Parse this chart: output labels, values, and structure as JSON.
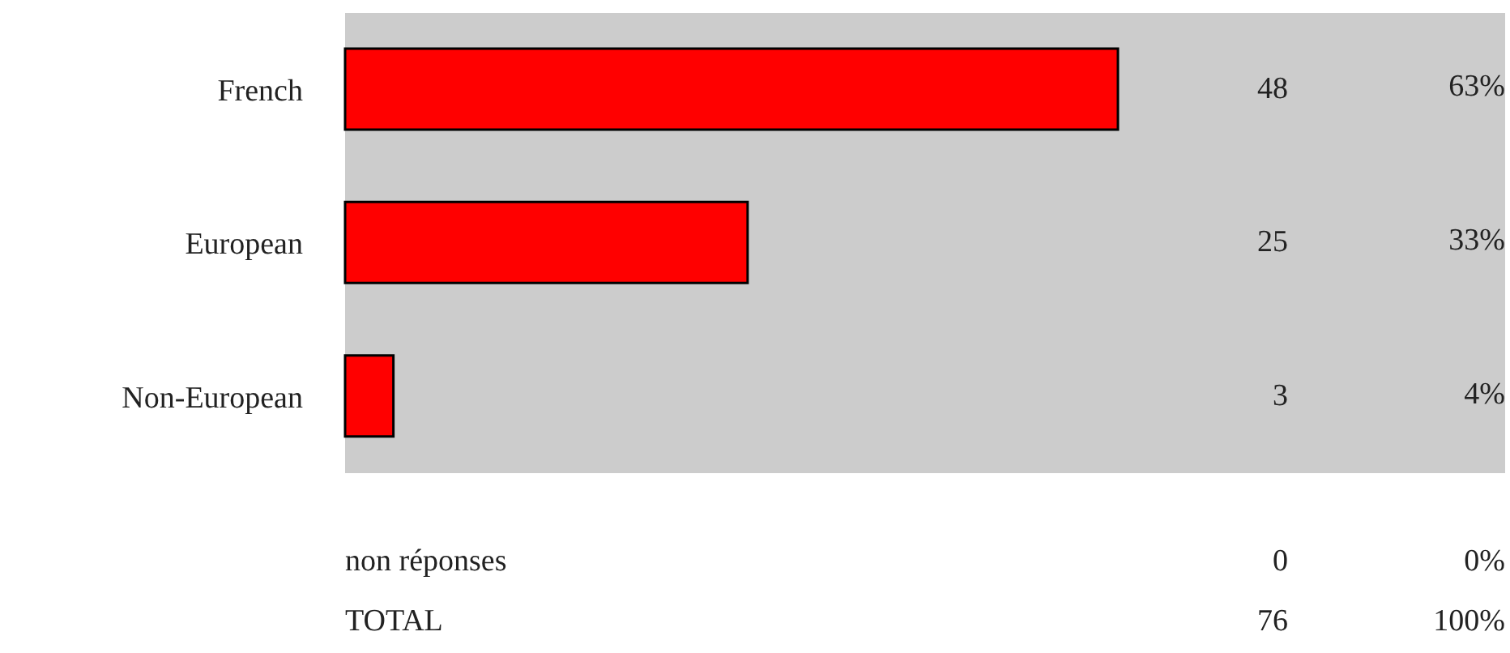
{
  "chart_data": {
    "type": "bar",
    "orientation": "horizontal",
    "categories": [
      "French",
      "European",
      "Non-European"
    ],
    "values": [
      48,
      25,
      3
    ],
    "color": "#ff0000",
    "data_labels": true,
    "annotations": [
      "63%",
      "33%",
      "4%",
      "non réponses",
      "0",
      "0%",
      "TOTAL",
      "76",
      "100%"
    ]
  }
}
